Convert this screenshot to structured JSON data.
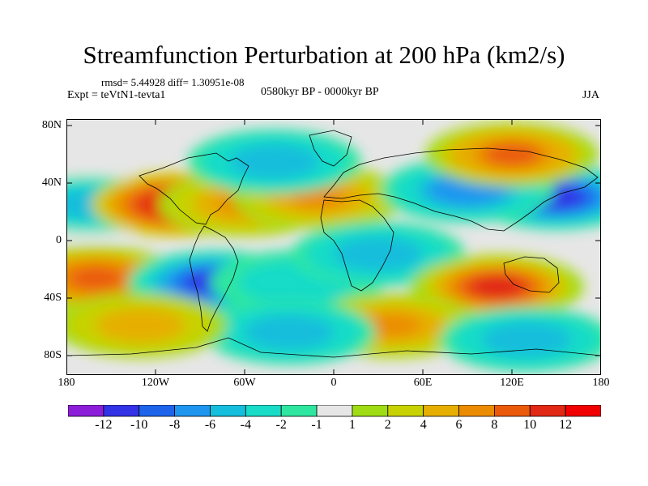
{
  "title": "Streamfunction Perturbation at 200 hPa (km2/s)",
  "stats": "rmsd= 5.44928 diff= 1.30951e-08",
  "experiment": "Expt = teVtN1-tevta1",
  "period": "0580kyr BP - 0000kyr BP",
  "season": "JJA",
  "axes": {
    "lat_labels": [
      "80N",
      "40N",
      "0",
      "40S",
      "80S"
    ],
    "lon_labels": [
      "180",
      "120W",
      "60W",
      "0",
      "60E",
      "120E",
      "180"
    ]
  },
  "colorbar": {
    "labels": [
      "-12",
      "-10",
      "-8",
      "-6",
      "-4",
      "-2",
      "-1",
      "1",
      "2",
      "4",
      "6",
      "8",
      "10",
      "12"
    ],
    "colors": [
      "#8c1eda",
      "#3232e6",
      "#1e64eb",
      "#1e96f0",
      "#14bedc",
      "#18dcc8",
      "#2ee6a0",
      "#e6e6e6",
      "#a0dc14",
      "#c8d200",
      "#e6af00",
      "#eb8c00",
      "#eb5a0a",
      "#e12814",
      "#f00000"
    ]
  },
  "map_fields": [
    {
      "lon": -165,
      "lat": 30,
      "value": -6
    },
    {
      "lon": -105,
      "lat": 30,
      "value": 12
    },
    {
      "lon": -60,
      "lat": 30,
      "value": 7
    },
    {
      "lon": -10,
      "lat": 35,
      "value": 6
    },
    {
      "lon": -40,
      "lat": 60,
      "value": -5
    },
    {
      "lon": -160,
      "lat": -22,
      "value": 9
    },
    {
      "lon": -80,
      "lat": -25,
      "value": -12
    },
    {
      "lon": -25,
      "lat": -25,
      "value": -4
    },
    {
      "lon": 30,
      "lat": -5,
      "value": -5
    },
    {
      "lon": 110,
      "lat": -28,
      "value": 10
    },
    {
      "lon": 150,
      "lat": 35,
      "value": -12
    },
    {
      "lon": 90,
      "lat": 40,
      "value": -8
    },
    {
      "lon": 120,
      "lat": 65,
      "value": 8
    },
    {
      "lon": 40,
      "lat": -55,
      "value": 6
    },
    {
      "lon": -30,
      "lat": -60,
      "value": -5
    },
    {
      "lon": -130,
      "lat": -55,
      "value": 5
    },
    {
      "lon": 130,
      "lat": -65,
      "value": -5
    }
  ]
}
